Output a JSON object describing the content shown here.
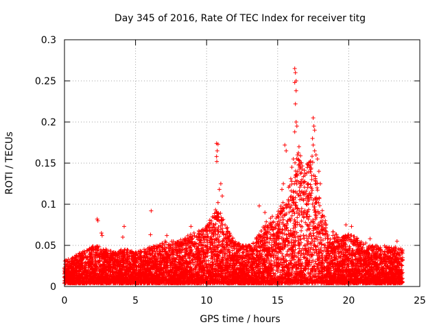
{
  "chart_data": {
    "type": "scatter",
    "title": "Day 345 of 2016, Rate Of TEC Index for receiver titg",
    "xlabel": "GPS time / hours",
    "ylabel": "ROTI / TECUs",
    "xlim": [
      0,
      25
    ],
    "ylim": [
      0,
      0.3
    ],
    "xticks": [
      0,
      5,
      10,
      15,
      20,
      25
    ],
    "xtick_labels": [
      "0",
      "5",
      "10",
      "15",
      "20",
      "25"
    ],
    "yticks": [
      0,
      0.05,
      0.1,
      0.15,
      0.2,
      0.25,
      0.3
    ],
    "ytick_labels": [
      "0",
      "0.05",
      "0.1",
      "0.15",
      "0.2",
      "0.25",
      "0.3"
    ],
    "grid": true,
    "marker": "plus",
    "series": [
      {
        "name": "ROTI",
        "color": "#ff0000",
        "x_range": [
          0,
          23.8
        ],
        "envelope": [
          [
            0.0,
            0.032
          ],
          [
            0.5,
            0.035
          ],
          [
            1.0,
            0.04
          ],
          [
            1.5,
            0.045
          ],
          [
            2.0,
            0.05
          ],
          [
            2.5,
            0.05
          ],
          [
            3.0,
            0.045
          ],
          [
            3.5,
            0.042
          ],
          [
            4.0,
            0.045
          ],
          [
            4.5,
            0.045
          ],
          [
            5.0,
            0.042
          ],
          [
            5.5,
            0.045
          ],
          [
            6.0,
            0.048
          ],
          [
            6.5,
            0.05
          ],
          [
            7.0,
            0.055
          ],
          [
            7.5,
            0.055
          ],
          [
            8.0,
            0.055
          ],
          [
            8.5,
            0.06
          ],
          [
            9.0,
            0.065
          ],
          [
            9.5,
            0.068
          ],
          [
            10.0,
            0.075
          ],
          [
            10.5,
            0.095
          ],
          [
            11.0,
            0.09
          ],
          [
            11.5,
            0.07
          ],
          [
            12.0,
            0.055
          ],
          [
            12.5,
            0.05
          ],
          [
            13.0,
            0.05
          ],
          [
            13.5,
            0.06
          ],
          [
            14.0,
            0.075
          ],
          [
            14.5,
            0.085
          ],
          [
            15.0,
            0.09
          ],
          [
            15.5,
            0.11
          ],
          [
            16.0,
            0.135
          ],
          [
            16.5,
            0.17
          ],
          [
            17.0,
            0.15
          ],
          [
            17.5,
            0.16
          ],
          [
            18.0,
            0.1
          ],
          [
            18.5,
            0.075
          ],
          [
            19.0,
            0.065
          ],
          [
            19.5,
            0.06
          ],
          [
            20.0,
            0.065
          ],
          [
            20.5,
            0.06
          ],
          [
            21.0,
            0.055
          ],
          [
            21.5,
            0.05
          ],
          [
            22.0,
            0.05
          ],
          [
            22.5,
            0.05
          ],
          [
            23.0,
            0.048
          ],
          [
            23.5,
            0.048
          ],
          [
            23.8,
            0.045
          ]
        ],
        "baseline": 0.004,
        "outliers": [
          [
            2.3,
            0.082
          ],
          [
            2.35,
            0.08
          ],
          [
            2.6,
            0.065
          ],
          [
            2.65,
            0.062
          ],
          [
            4.2,
            0.073
          ],
          [
            4.1,
            0.06
          ],
          [
            6.1,
            0.092
          ],
          [
            6.05,
            0.063
          ],
          [
            7.2,
            0.062
          ],
          [
            8.9,
            0.073
          ],
          [
            10.7,
            0.174
          ],
          [
            10.8,
            0.173
          ],
          [
            10.75,
            0.165
          ],
          [
            10.7,
            0.158
          ],
          [
            10.72,
            0.152
          ],
          [
            11.0,
            0.125
          ],
          [
            10.9,
            0.118
          ],
          [
            11.1,
            0.11
          ],
          [
            10.8,
            0.102
          ],
          [
            13.7,
            0.098
          ],
          [
            14.1,
            0.09
          ],
          [
            15.5,
            0.172
          ],
          [
            15.6,
            0.165
          ],
          [
            16.2,
            0.265
          ],
          [
            16.25,
            0.26
          ],
          [
            16.3,
            0.25
          ],
          [
            16.2,
            0.248
          ],
          [
            16.3,
            0.238
          ],
          [
            16.25,
            0.222
          ],
          [
            16.3,
            0.2
          ],
          [
            16.35,
            0.195
          ],
          [
            16.2,
            0.188
          ],
          [
            16.5,
            0.17
          ],
          [
            16.4,
            0.16
          ],
          [
            16.1,
            0.155
          ],
          [
            16.6,
            0.15
          ],
          [
            16.0,
            0.145
          ],
          [
            17.5,
            0.205
          ],
          [
            17.55,
            0.195
          ],
          [
            17.6,
            0.19
          ],
          [
            17.45,
            0.18
          ],
          [
            17.5,
            0.172
          ],
          [
            17.6,
            0.165
          ],
          [
            17.7,
            0.16
          ],
          [
            17.8,
            0.155
          ],
          [
            17.9,
            0.14
          ],
          [
            17.4,
            0.13
          ],
          [
            18.0,
            0.125
          ],
          [
            15.4,
            0.125
          ],
          [
            15.3,
            0.118
          ],
          [
            19.8,
            0.075
          ],
          [
            20.2,
            0.073
          ],
          [
            21.5,
            0.058
          ],
          [
            23.4,
            0.055
          ]
        ]
      }
    ]
  }
}
